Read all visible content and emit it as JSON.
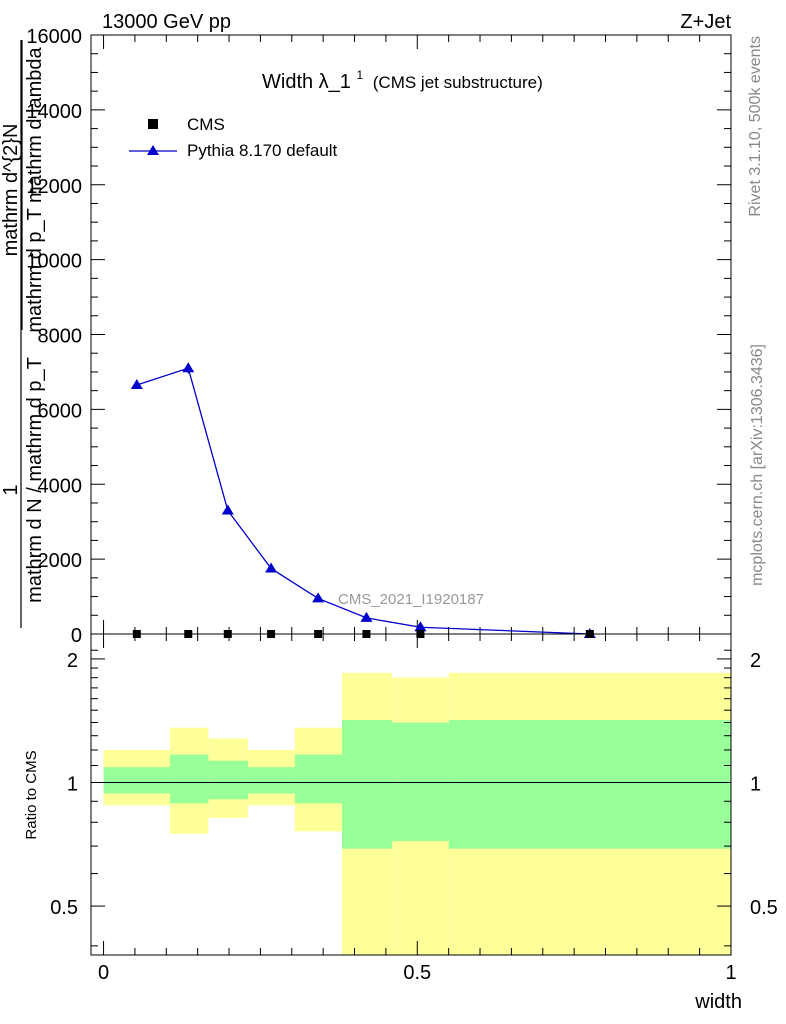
{
  "header": {
    "left": "13000 GeV pp",
    "right": "Z+Jet"
  },
  "side_texts": {
    "top": "Rivet 3.1.10,  500k events",
    "bottom": "mcplots.cern.ch [arXiv:1306.3436]"
  },
  "chart_data": [
    {
      "type": "line",
      "title": "Width λ_1",
      "title_sup": "1",
      "subtitle": "(CMS jet substructure)",
      "watermark": "CMS_2021_I1920187",
      "ylabel_parts": {
        "one": "1",
        "denominator": "mathrm d N / mathrm d p_T",
        "numerator_dN": "mathrm d^{2}N",
        "numerator_dp": "mathrm d p_T mathrm d lambda"
      },
      "xlim": [
        -0.02,
        1.0
      ],
      "ylim": [
        0,
        16000
      ],
      "yticks": [
        0,
        2000,
        4000,
        6000,
        8000,
        10000,
        12000,
        14000,
        16000
      ],
      "ytick_labels": [
        "0",
        "2000",
        "4000",
        "6000",
        "8000",
        "10000",
        "12000",
        "14000",
        "16000"
      ],
      "legend_position": "top-left",
      "series": [
        {
          "name": "CMS",
          "marker": "square",
          "color": "#000000",
          "x": [
            0.053,
            0.135,
            0.198,
            0.267,
            0.342,
            0.419,
            0.505,
            0.775
          ],
          "y": [
            0,
            0,
            0,
            0,
            0,
            0,
            0,
            0
          ]
        },
        {
          "name": "Pythia 8.170 default",
          "marker": "triangle",
          "color": "#0000cc",
          "x": [
            0.053,
            0.135,
            0.198,
            0.267,
            0.342,
            0.419,
            0.505,
            0.775
          ],
          "y": [
            6650,
            7100,
            3300,
            1750,
            950,
            430,
            180,
            0
          ],
          "yerr": [
            60,
            140,
            60,
            30,
            20,
            10,
            5,
            0
          ]
        }
      ]
    },
    {
      "type": "area",
      "ylabel": "Ratio to CMS",
      "xlabel": "width",
      "scale": "log",
      "xlim": [
        -0.02,
        1.0
      ],
      "ylim": [
        0.38,
        2.3
      ],
      "xticks": [
        0,
        0.5,
        1
      ],
      "xtick_labels": [
        "0",
        "0.5",
        "1"
      ],
      "yticks": [
        0.5,
        1,
        2
      ],
      "ytick_labels": [
        "0.5",
        "1",
        "2"
      ],
      "reference_line": 1,
      "bands": {
        "bin_edges": [
          0.0,
          0.106,
          0.167,
          0.23,
          0.305,
          0.38,
          0.46,
          0.55,
          1.0
        ],
        "inner": {
          "color": "#99ff99",
          "lower": [
            0.94,
            0.89,
            0.91,
            0.94,
            0.89,
            0.69,
            0.72,
            0.69
          ],
          "upper": [
            1.09,
            1.17,
            1.13,
            1.09,
            1.17,
            1.42,
            1.4,
            1.42
          ]
        },
        "outer": {
          "color": "#ffff99",
          "lower": [
            0.88,
            0.75,
            0.82,
            0.88,
            0.76,
            0.38,
            0.38,
            0.38
          ],
          "upper": [
            1.2,
            1.36,
            1.28,
            1.2,
            1.36,
            1.85,
            1.8,
            1.85
          ]
        }
      }
    }
  ]
}
